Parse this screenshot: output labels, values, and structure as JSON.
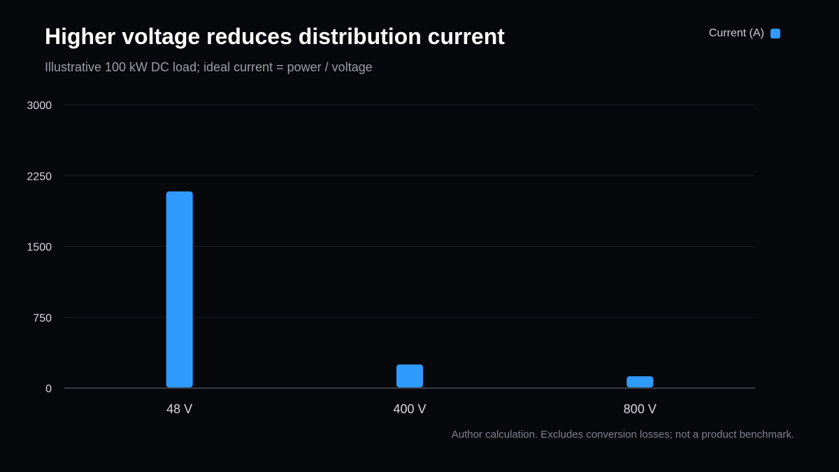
{
  "header": {
    "title": "Higher voltage reduces distribution current",
    "subtitle": "Illustrative 100 kW DC load; ideal current = power / voltage"
  },
  "legend": {
    "label": "Current (A)",
    "placement": "top-right"
  },
  "footnote": "Author calculation. Excludes conversion losses; not a product benchmark.",
  "colors": {
    "background": "#07080c",
    "bar": "#2f9bff",
    "grid": "#1c1f26",
    "axis": "#4a4e57",
    "tick_text": "#d5d8dd"
  },
  "chart_data": {
    "type": "bar",
    "title": "Higher voltage reduces distribution current",
    "subtitle": "Illustrative 100 kW DC load; ideal current = power / voltage",
    "categories": [
      "48 V",
      "400 V",
      "800 V"
    ],
    "series": [
      {
        "name": "Current (A)",
        "values": [
          2083,
          250,
          125
        ]
      }
    ],
    "ylim": [
      0,
      3000
    ],
    "yticks": [
      "0",
      "750",
      "1500",
      "2250",
      "3000"
    ],
    "xlabel": "",
    "ylabel": "",
    "grid": true,
    "legend": "top-right"
  }
}
